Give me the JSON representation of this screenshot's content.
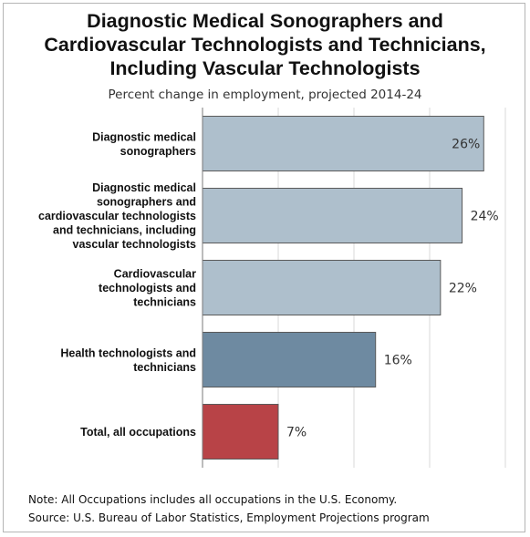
{
  "chart_data": {
    "type": "bar",
    "orientation": "horizontal",
    "title_lines": [
      "Diagnostic Medical Sonographers and",
      "Cardiovascular Technologists and Technicians,",
      "Including Vascular Technologists"
    ],
    "subtitle": "Percent change in employment, projected 2014-24",
    "categories": [
      [
        "Diagnostic medical",
        "sonographers"
      ],
      [
        "Diagnostic medical",
        "sonographers and",
        "cardiovascular technologists",
        "and technicians, including",
        "vascular technologists"
      ],
      [
        "Cardiovascular",
        "technologists and",
        "technicians"
      ],
      [
        "Health technologists and",
        "technicians"
      ],
      [
        "Total, all occupations"
      ]
    ],
    "values": [
      26,
      24,
      22,
      16,
      7
    ],
    "value_labels": [
      "26%",
      "24%",
      "22%",
      "16%",
      "7%"
    ],
    "bar_colors": [
      "#aebfcc",
      "#aebfcc",
      "#aebfcc",
      "#6e8aa1",
      "#b84347"
    ],
    "xlim": [
      0,
      28
    ],
    "grid": true,
    "legend": "none"
  },
  "notes": [
    "Note: All Occupations includes all occupations in the U.S. Economy.",
    "Source: U.S. Bureau of Labor Statistics, Employment Projections program"
  ]
}
